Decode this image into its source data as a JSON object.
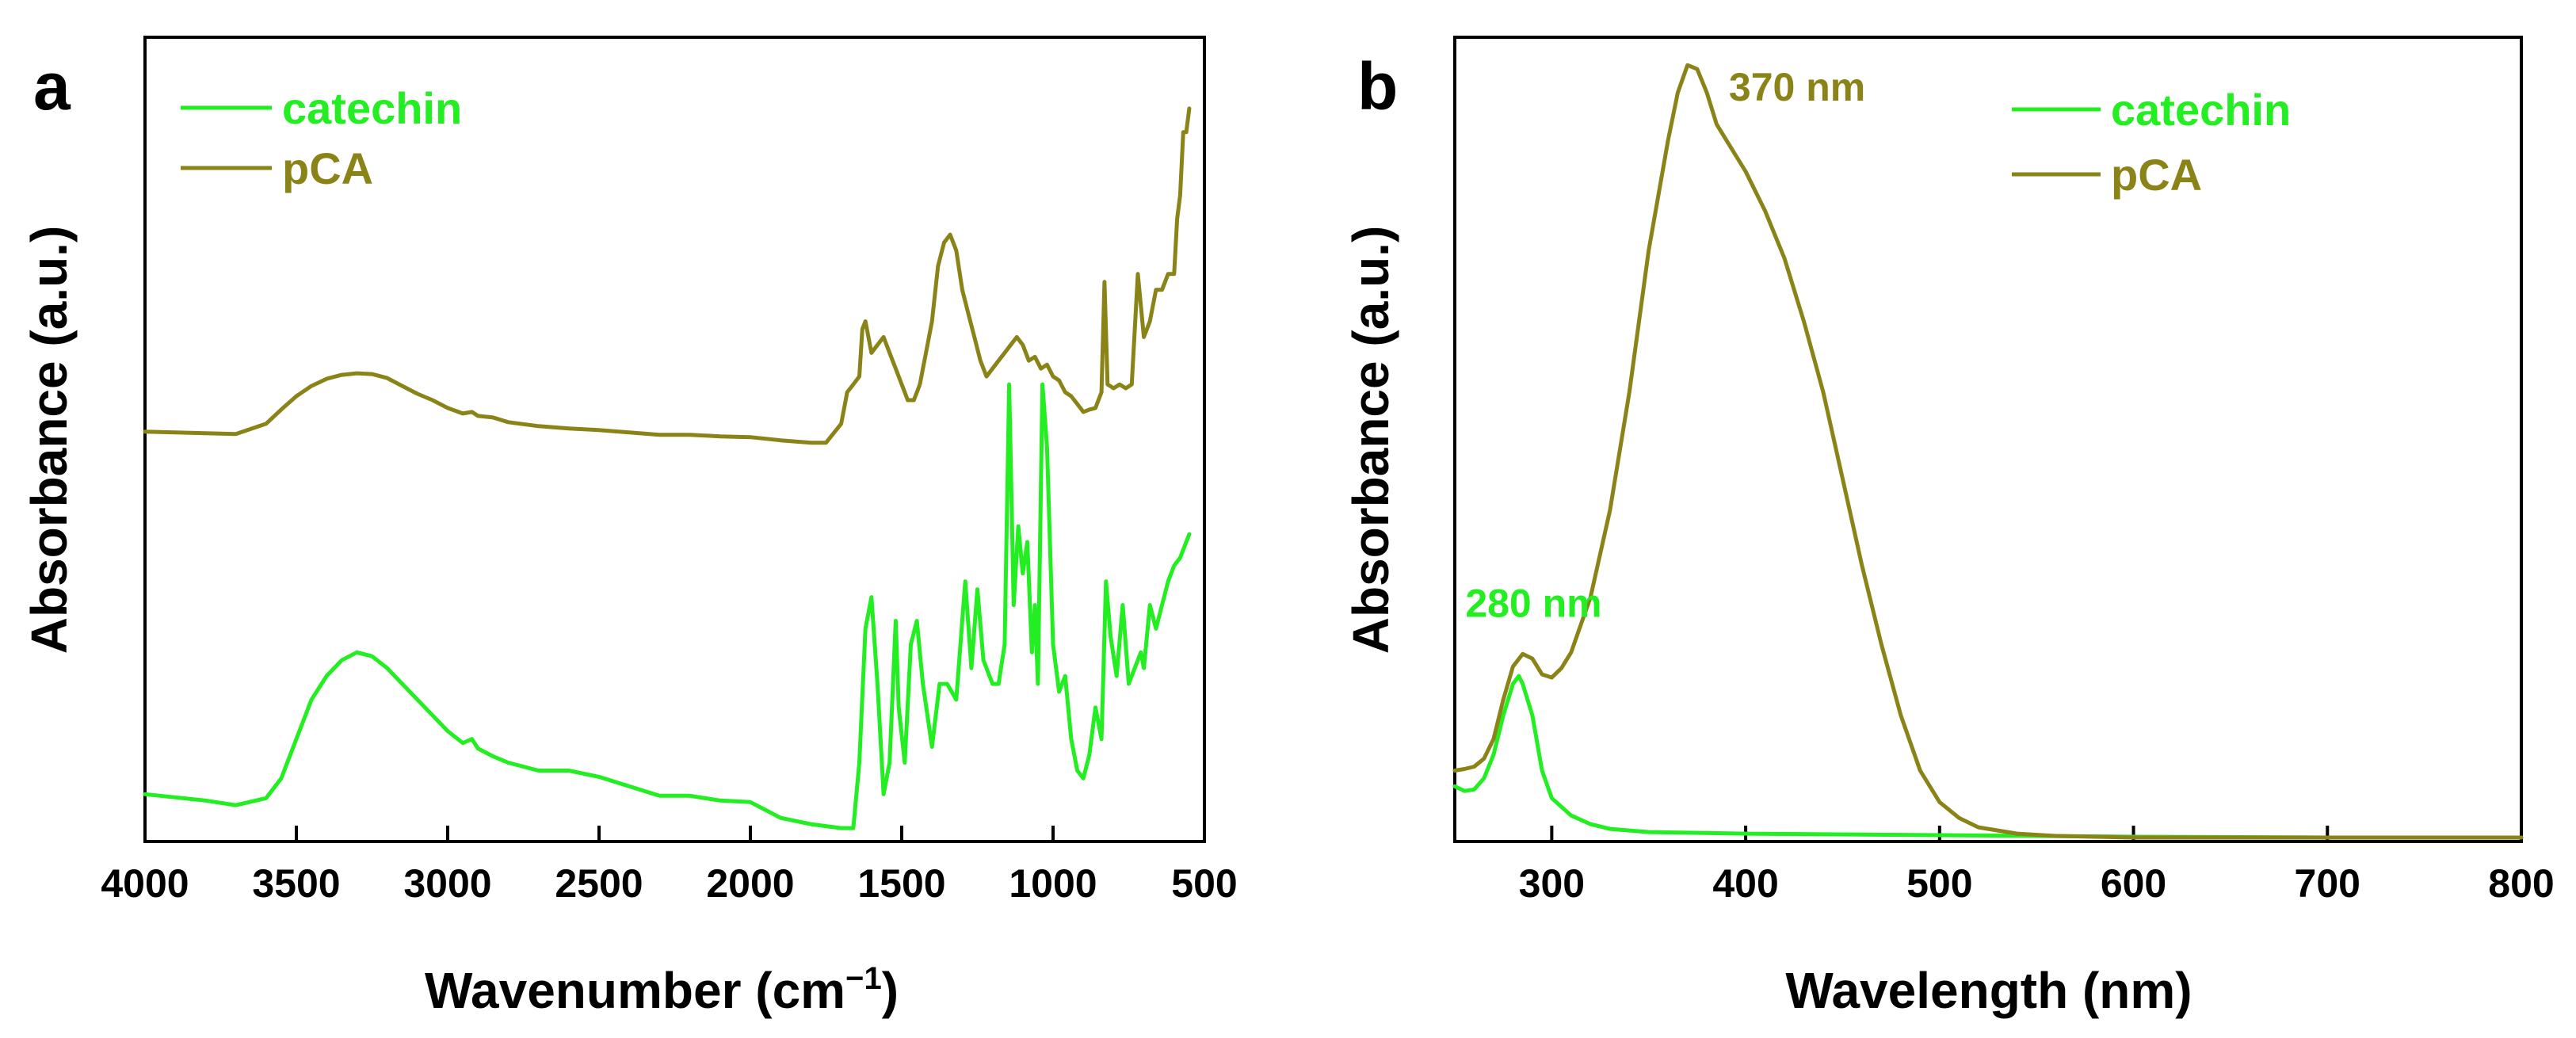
{
  "colors": {
    "catechin": "#22ee22",
    "pca": "#8a8418",
    "axis": "#000000"
  },
  "chart_data": [
    {
      "panel": "a",
      "type": "line",
      "title": "",
      "xlabel": "Wavenumber (cm",
      "xlabel_sup": "−1",
      "xlabel_end": ")",
      "ylabel": "Absorbance (a.u.)",
      "xlim": [
        4000,
        500
      ],
      "ylim": [
        0,
        1
      ],
      "x_inverted": true,
      "xticks": [
        4000,
        3500,
        3000,
        2500,
        2000,
        1500,
        1000,
        500
      ],
      "legend": {
        "placement": "top-left",
        "entries": [
          "catechin",
          "pCA"
        ]
      },
      "series": [
        {
          "name": "catechin",
          "color_key": "catechin",
          "points": [
            [
              4000,
              0.06
            ],
            [
              3900,
              0.056
            ],
            [
              3800,
              0.052
            ],
            [
              3700,
              0.046
            ],
            [
              3600,
              0.055
            ],
            [
              3550,
              0.08
            ],
            [
              3500,
              0.13
            ],
            [
              3450,
              0.18
            ],
            [
              3400,
              0.21
            ],
            [
              3350,
              0.23
            ],
            [
              3300,
              0.24
            ],
            [
              3250,
              0.235
            ],
            [
              3200,
              0.22
            ],
            [
              3150,
              0.2
            ],
            [
              3100,
              0.18
            ],
            [
              3050,
              0.16
            ],
            [
              3000,
              0.14
            ],
            [
              2950,
              0.125
            ],
            [
              2920,
              0.13
            ],
            [
              2900,
              0.118
            ],
            [
              2850,
              0.108
            ],
            [
              2800,
              0.1
            ],
            [
              2700,
              0.09
            ],
            [
              2600,
              0.09
            ],
            [
              2500,
              0.082
            ],
            [
              2400,
              0.07
            ],
            [
              2300,
              0.058
            ],
            [
              2200,
              0.058
            ],
            [
              2100,
              0.052
            ],
            [
              2000,
              0.05
            ],
            [
              1900,
              0.03
            ],
            [
              1800,
              0.022
            ],
            [
              1700,
              0.017
            ],
            [
              1660,
              0.017
            ],
            [
              1640,
              0.1
            ],
            [
              1620,
              0.27
            ],
            [
              1600,
              0.31
            ],
            [
              1580,
              0.2
            ],
            [
              1560,
              0.06
            ],
            [
              1540,
              0.1
            ],
            [
              1520,
              0.28
            ],
            [
              1510,
              0.17
            ],
            [
              1490,
              0.1
            ],
            [
              1470,
              0.25
            ],
            [
              1450,
              0.28
            ],
            [
              1430,
              0.2
            ],
            [
              1400,
              0.12
            ],
            [
              1375,
              0.2
            ],
            [
              1350,
              0.2
            ],
            [
              1320,
              0.18
            ],
            [
              1290,
              0.33
            ],
            [
              1270,
              0.22
            ],
            [
              1250,
              0.32
            ],
            [
              1230,
              0.23
            ],
            [
              1220,
              0.22
            ],
            [
              1200,
              0.2
            ],
            [
              1180,
              0.2
            ],
            [
              1160,
              0.25
            ],
            [
              1145,
              0.58
            ],
            [
              1130,
              0.3
            ],
            [
              1115,
              0.4
            ],
            [
              1100,
              0.34
            ],
            [
              1085,
              0.38
            ],
            [
              1070,
              0.24
            ],
            [
              1060,
              0.3
            ],
            [
              1050,
              0.2
            ],
            [
              1035,
              0.58
            ],
            [
              1020,
              0.5
            ],
            [
              1000,
              0.25
            ],
            [
              980,
              0.19
            ],
            [
              960,
              0.21
            ],
            [
              940,
              0.13
            ],
            [
              920,
              0.09
            ],
            [
              900,
              0.08
            ],
            [
              880,
              0.11
            ],
            [
              860,
              0.17
            ],
            [
              840,
              0.13
            ],
            [
              825,
              0.33
            ],
            [
              810,
              0.26
            ],
            [
              790,
              0.21
            ],
            [
              770,
              0.3
            ],
            [
              750,
              0.2
            ],
            [
              730,
              0.22
            ],
            [
              710,
              0.24
            ],
            [
              700,
              0.22
            ],
            [
              680,
              0.3
            ],
            [
              660,
              0.27
            ],
            [
              640,
              0.3
            ],
            [
              620,
              0.33
            ],
            [
              600,
              0.35
            ],
            [
              580,
              0.36
            ],
            [
              560,
              0.38
            ],
            [
              550,
              0.39
            ]
          ]
        },
        {
          "name": "pCA",
          "color_key": "pca",
          "points": [
            [
              4000,
              0.52
            ],
            [
              3800,
              0.518
            ],
            [
              3700,
              0.517
            ],
            [
              3600,
              0.53
            ],
            [
              3550,
              0.548
            ],
            [
              3500,
              0.565
            ],
            [
              3450,
              0.578
            ],
            [
              3400,
              0.587
            ],
            [
              3350,
              0.592
            ],
            [
              3300,
              0.594
            ],
            [
              3250,
              0.593
            ],
            [
              3200,
              0.588
            ],
            [
              3150,
              0.578
            ],
            [
              3100,
              0.568
            ],
            [
              3050,
              0.56
            ],
            [
              3000,
              0.55
            ],
            [
              2950,
              0.543
            ],
            [
              2920,
              0.545
            ],
            [
              2900,
              0.54
            ],
            [
              2850,
              0.538
            ],
            [
              2800,
              0.532
            ],
            [
              2700,
              0.527
            ],
            [
              2600,
              0.524
            ],
            [
              2500,
              0.522
            ],
            [
              2400,
              0.519
            ],
            [
              2300,
              0.516
            ],
            [
              2200,
              0.516
            ],
            [
              2100,
              0.514
            ],
            [
              2000,
              0.513
            ],
            [
              1900,
              0.509
            ],
            [
              1800,
              0.506
            ],
            [
              1750,
              0.506
            ],
            [
              1700,
              0.53
            ],
            [
              1680,
              0.57
            ],
            [
              1660,
              0.58
            ],
            [
              1640,
              0.59
            ],
            [
              1630,
              0.65
            ],
            [
              1620,
              0.66
            ],
            [
              1600,
              0.62
            ],
            [
              1580,
              0.63
            ],
            [
              1560,
              0.64
            ],
            [
              1540,
              0.62
            ],
            [
              1520,
              0.6
            ],
            [
              1500,
              0.58
            ],
            [
              1480,
              0.56
            ],
            [
              1460,
              0.56
            ],
            [
              1440,
              0.58
            ],
            [
              1420,
              0.62
            ],
            [
              1400,
              0.66
            ],
            [
              1380,
              0.73
            ],
            [
              1360,
              0.76
            ],
            [
              1340,
              0.77
            ],
            [
              1320,
              0.75
            ],
            [
              1300,
              0.7
            ],
            [
              1280,
              0.67
            ],
            [
              1260,
              0.64
            ],
            [
              1240,
              0.61
            ],
            [
              1220,
              0.59
            ],
            [
              1200,
              0.6
            ],
            [
              1180,
              0.61
            ],
            [
              1160,
              0.62
            ],
            [
              1140,
              0.63
            ],
            [
              1120,
              0.64
            ],
            [
              1100,
              0.63
            ],
            [
              1080,
              0.61
            ],
            [
              1060,
              0.615
            ],
            [
              1040,
              0.6
            ],
            [
              1020,
              0.605
            ],
            [
              1000,
              0.59
            ],
            [
              980,
              0.585
            ],
            [
              960,
              0.57
            ],
            [
              940,
              0.565
            ],
            [
              920,
              0.555
            ],
            [
              900,
              0.545
            ],
            [
              880,
              0.548
            ],
            [
              860,
              0.55
            ],
            [
              840,
              0.57
            ],
            [
              830,
              0.71
            ],
            [
              820,
              0.58
            ],
            [
              800,
              0.575
            ],
            [
              780,
              0.58
            ],
            [
              760,
              0.575
            ],
            [
              740,
              0.58
            ],
            [
              720,
              0.72
            ],
            [
              700,
              0.64
            ],
            [
              680,
              0.66
            ],
            [
              660,
              0.7
            ],
            [
              640,
              0.7
            ],
            [
              620,
              0.72
            ],
            [
              600,
              0.72
            ],
            [
              590,
              0.79
            ],
            [
              580,
              0.82
            ],
            [
              570,
              0.9
            ],
            [
              560,
              0.9
            ],
            [
              550,
              0.93
            ]
          ]
        }
      ]
    },
    {
      "panel": "b",
      "type": "line",
      "title": "",
      "xlabel": "Wavelength (nm)",
      "ylabel": "Absorbance (a.u.)",
      "xlim": [
        250,
        800
      ],
      "ylim": [
        0,
        1
      ],
      "xticks": [
        300,
        400,
        500,
        600,
        700,
        800
      ],
      "legend": {
        "placement": "top-right",
        "entries": [
          "catechin",
          "pCA"
        ]
      },
      "annotations": [
        {
          "text": "370 nm",
          "x": 375,
          "y": 0.985,
          "color_key": "pca"
        },
        {
          "text": "280 nm",
          "x": 282,
          "y": 0.275,
          "color_key": "catechin"
        }
      ],
      "series": [
        {
          "name": "catechin",
          "color_key": "catechin",
          "points": [
            [
              250,
              0.07
            ],
            [
              255,
              0.064
            ],
            [
              260,
              0.066
            ],
            [
              265,
              0.08
            ],
            [
              270,
              0.11
            ],
            [
              275,
              0.16
            ],
            [
              280,
              0.2
            ],
            [
              283,
              0.21
            ],
            [
              285,
              0.2
            ],
            [
              290,
              0.16
            ],
            [
              295,
              0.09
            ],
            [
              300,
              0.055
            ],
            [
              310,
              0.033
            ],
            [
              320,
              0.022
            ],
            [
              330,
              0.016
            ],
            [
              350,
              0.012
            ],
            [
              400,
              0.01
            ],
            [
              500,
              0.008
            ],
            [
              600,
              0.006
            ],
            [
              700,
              0.005
            ],
            [
              800,
              0.005
            ]
          ]
        },
        {
          "name": "pCA",
          "color_key": "pca",
          "points": [
            [
              250,
              0.09
            ],
            [
              255,
              0.092
            ],
            [
              260,
              0.095
            ],
            [
              265,
              0.105
            ],
            [
              270,
              0.13
            ],
            [
              275,
              0.18
            ],
            [
              280,
              0.222
            ],
            [
              285,
              0.238
            ],
            [
              290,
              0.232
            ],
            [
              295,
              0.212
            ],
            [
              300,
              0.208
            ],
            [
              305,
              0.22
            ],
            [
              310,
              0.24
            ],
            [
              320,
              0.31
            ],
            [
              330,
              0.42
            ],
            [
              340,
              0.57
            ],
            [
              350,
              0.75
            ],
            [
              360,
              0.89
            ],
            [
              365,
              0.95
            ],
            [
              370,
              0.985
            ],
            [
              375,
              0.98
            ],
            [
              380,
              0.95
            ],
            [
              385,
              0.91
            ],
            [
              390,
              0.89
            ],
            [
              400,
              0.85
            ],
            [
              410,
              0.8
            ],
            [
              420,
              0.74
            ],
            [
              430,
              0.66
            ],
            [
              440,
              0.57
            ],
            [
              450,
              0.46
            ],
            [
              460,
              0.35
            ],
            [
              470,
              0.25
            ],
            [
              480,
              0.16
            ],
            [
              490,
              0.09
            ],
            [
              500,
              0.05
            ],
            [
              510,
              0.03
            ],
            [
              520,
              0.018
            ],
            [
              540,
              0.01
            ],
            [
              560,
              0.007
            ],
            [
              600,
              0.005
            ],
            [
              700,
              0.005
            ],
            [
              800,
              0.005
            ]
          ]
        }
      ]
    }
  ]
}
